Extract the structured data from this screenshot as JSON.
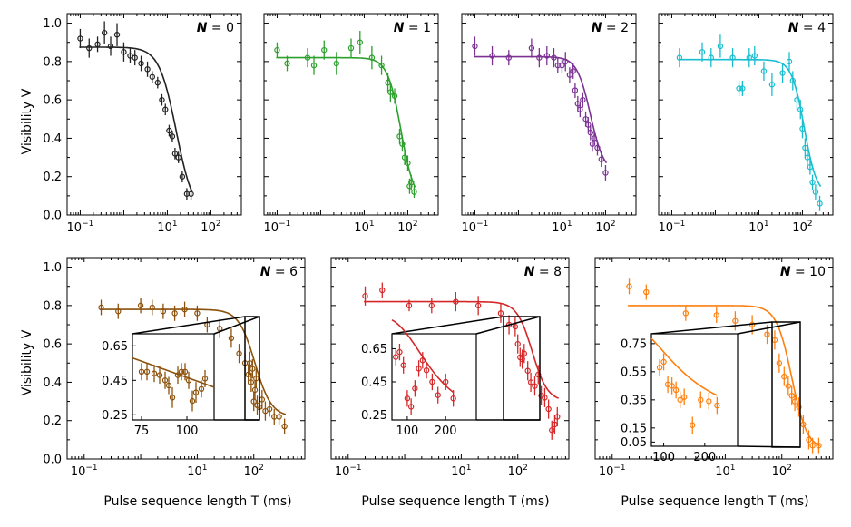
{
  "figure": {
    "ylabel_top": "Visibility V",
    "ylabel_bottom": "Visibility V",
    "xlabel": "Pulse sequence length T (ms)"
  },
  "chart_data": [
    {
      "type": "scatter",
      "label_n": "0",
      "color": "#222222",
      "x_scale": "log",
      "xlim": [
        0.05,
        500
      ],
      "ylim": [
        0,
        1.05
      ],
      "xticks": [
        "10^-1",
        "10^1",
        "10^2"
      ],
      "yticks": [
        "0.0",
        "0.2",
        "0.4",
        "0.6",
        "0.8",
        "1.0"
      ],
      "fit": {
        "v0": 0.875,
        "v1": 0.0,
        "tc": 16,
        "n": 2.2
      },
      "x": [
        0.1,
        0.16,
        0.25,
        0.36,
        0.5,
        0.7,
        1.0,
        1.4,
        1.8,
        2.5,
        3.5,
        4.5,
        6,
        7.5,
        9,
        11,
        13,
        15,
        18,
        22,
        28,
        35
      ],
      "y": [
        0.92,
        0.87,
        0.89,
        0.95,
        0.88,
        0.94,
        0.85,
        0.83,
        0.82,
        0.79,
        0.76,
        0.72,
        0.69,
        0.6,
        0.55,
        0.44,
        0.41,
        0.32,
        0.3,
        0.2,
        0.11,
        0.11
      ],
      "err": [
        0.05,
        0.05,
        0.04,
        0.06,
        0.05,
        0.06,
        0.05,
        0.04,
        0.04,
        0.04,
        0.04,
        0.03,
        0.03,
        0.03,
        0.03,
        0.03,
        0.03,
        0.03,
        0.03,
        0.03,
        0.03,
        0.03
      ]
    },
    {
      "type": "scatter",
      "label_n": "1",
      "color": "#2ca02c",
      "x_scale": "log",
      "xlim": [
        0.05,
        500
      ],
      "ylim": [
        0,
        1.05
      ],
      "xticks": [
        "10^-1",
        "10^1",
        "10^2"
      ],
      "yticks": [],
      "fit": {
        "v0": 0.82,
        "v1": 0.06,
        "tc": 70,
        "n": 2.8
      },
      "x": [
        0.1,
        0.17,
        0.5,
        0.7,
        1.2,
        2.3,
        5,
        8,
        15,
        25,
        35,
        40,
        50,
        65,
        75,
        85,
        100,
        110,
        120,
        140
      ],
      "y": [
        0.86,
        0.79,
        0.82,
        0.78,
        0.86,
        0.79,
        0.87,
        0.9,
        0.82,
        0.78,
        0.69,
        0.64,
        0.62,
        0.41,
        0.37,
        0.3,
        0.27,
        0.15,
        0.17,
        0.12
      ],
      "err": [
        0.04,
        0.04,
        0.05,
        0.05,
        0.05,
        0.06,
        0.05,
        0.06,
        0.06,
        0.05,
        0.05,
        0.05,
        0.04,
        0.04,
        0.04,
        0.04,
        0.04,
        0.04,
        0.04,
        0.03
      ]
    },
    {
      "type": "scatter",
      "label_n": "2",
      "color": "#7b3294",
      "x_scale": "log",
      "xlim": [
        0.05,
        500
      ],
      "ylim": [
        0,
        1.05
      ],
      "xticks": [
        "10^-1",
        "10^1",
        "10^2"
      ],
      "yticks": [],
      "fit": {
        "v0": 0.825,
        "v1": 0.22,
        "tc": 45,
        "n": 2.8
      },
      "x": [
        0.1,
        0.25,
        0.6,
        2,
        3,
        4.5,
        6.5,
        8,
        10,
        12,
        15,
        18,
        20,
        23,
        26,
        30,
        35,
        40,
        45,
        50,
        55,
        65,
        80,
        100
      ],
      "y": [
        0.88,
        0.83,
        0.82,
        0.87,
        0.82,
        0.83,
        0.82,
        0.78,
        0.78,
        0.8,
        0.73,
        0.75,
        0.65,
        0.58,
        0.55,
        0.6,
        0.5,
        0.47,
        0.43,
        0.37,
        0.4,
        0.35,
        0.29,
        0.22
      ],
      "err": [
        0.05,
        0.05,
        0.04,
        0.05,
        0.05,
        0.05,
        0.05,
        0.04,
        0.04,
        0.05,
        0.04,
        0.04,
        0.04,
        0.04,
        0.04,
        0.04,
        0.04,
        0.04,
        0.04,
        0.04,
        0.04,
        0.04,
        0.04,
        0.04
      ]
    },
    {
      "type": "scatter",
      "label_n": "4",
      "color": "#17becf",
      "x_scale": "log",
      "xlim": [
        0.05,
        500
      ],
      "ylim": [
        0,
        1.05
      ],
      "xticks": [
        "10^-1",
        "10^1",
        "10^2"
      ],
      "yticks": [],
      "fit": {
        "v0": 0.81,
        "v1": 0.1,
        "tc": 110,
        "n": 3.0
      },
      "x": [
        0.15,
        0.5,
        0.8,
        1.3,
        2.5,
        3.5,
        4.2,
        6,
        8,
        13,
        20,
        35,
        50,
        60,
        75,
        90,
        100,
        115,
        130,
        150,
        170,
        200,
        250
      ],
      "y": [
        0.82,
        0.85,
        0.82,
        0.88,
        0.82,
        0.66,
        0.66,
        0.82,
        0.83,
        0.75,
        0.68,
        0.74,
        0.8,
        0.7,
        0.6,
        0.55,
        0.45,
        0.35,
        0.3,
        0.25,
        0.17,
        0.12,
        0.06
      ],
      "err": [
        0.05,
        0.05,
        0.05,
        0.06,
        0.05,
        0.04,
        0.04,
        0.05,
        0.05,
        0.05,
        0.06,
        0.05,
        0.05,
        0.05,
        0.05,
        0.05,
        0.05,
        0.05,
        0.04,
        0.04,
        0.04,
        0.04,
        0.04
      ]
    },
    {
      "type": "scatter",
      "label_n": "6",
      "color": "#8c510a",
      "x_scale": "log",
      "xlim": [
        0.05,
        800
      ],
      "ylim": [
        0,
        1.05
      ],
      "xticks": [
        "10^-1",
        "10^1",
        "10^2"
      ],
      "yticks": [
        "0.0",
        "0.2",
        "0.4",
        "0.6",
        "0.8",
        "1.0"
      ],
      "fit": {
        "v0": 0.78,
        "v1": 0.22,
        "tc": 105,
        "n": 3.0
      },
      "x": [
        0.2,
        0.4,
        1,
        1.6,
        2.5,
        4,
        6,
        10,
        15,
        25,
        40,
        55,
        70,
        80,
        85,
        90,
        95,
        100,
        105,
        110,
        115,
        125,
        140,
        160,
        190,
        230,
        280,
        350
      ],
      "y": [
        0.79,
        0.77,
        0.8,
        0.79,
        0.77,
        0.76,
        0.78,
        0.76,
        0.7,
        0.68,
        0.63,
        0.55,
        0.5,
        0.44,
        0.5,
        0.4,
        0.47,
        0.3,
        0.36,
        0.42,
        0.28,
        0.27,
        0.31,
        0.25,
        0.26,
        0.22,
        0.22,
        0.17
      ],
      "err": [
        0.04,
        0.04,
        0.04,
        0.04,
        0.04,
        0.04,
        0.04,
        0.04,
        0.04,
        0.05,
        0.05,
        0.05,
        0.05,
        0.05,
        0.06,
        0.05,
        0.05,
        0.05,
        0.05,
        0.05,
        0.05,
        0.05,
        0.05,
        0.05,
        0.04,
        0.04,
        0.04,
        0.04
      ],
      "inset": {
        "xlim": [
          70,
          115
        ],
        "ylim": [
          0.22,
          0.72
        ],
        "xticks": [
          "75",
          "100"
        ],
        "yticks": [
          "0.65",
          "0.45",
          "0.25"
        ],
        "x": [
          75,
          78,
          82,
          85,
          88,
          90,
          92,
          95,
          97,
          99,
          101,
          103,
          105,
          108,
          110
        ],
        "y": [
          0.5,
          0.5,
          0.49,
          0.48,
          0.45,
          0.42,
          0.35,
          0.48,
          0.5,
          0.5,
          0.45,
          0.33,
          0.38,
          0.4,
          0.46
        ],
        "err": [
          0.05,
          0.05,
          0.05,
          0.05,
          0.05,
          0.05,
          0.06,
          0.05,
          0.05,
          0.05,
          0.05,
          0.06,
          0.06,
          0.05,
          0.05
        ],
        "fit_line": {
          "x": [
            70,
            115
          ],
          "y": [
            0.58,
            0.41
          ]
        }
      }
    },
    {
      "type": "scatter",
      "label_n": "8",
      "color": "#d62728",
      "x_scale": "log",
      "xlim": [
        0.05,
        800
      ],
      "ylim": [
        0,
        1.05
      ],
      "xticks": [
        "10^-1",
        "10^1",
        "10^2"
      ],
      "yticks": [],
      "fit": {
        "v0": 0.82,
        "v1": 0.3,
        "tc": 180,
        "n": 3.2
      },
      "x": [
        0.2,
        0.4,
        1.2,
        3,
        8,
        20,
        50,
        70,
        90,
        100,
        110,
        120,
        130,
        150,
        170,
        200,
        230,
        260,
        300,
        350,
        400,
        450,
        500
      ],
      "y": [
        0.85,
        0.88,
        0.8,
        0.8,
        0.82,
        0.8,
        0.76,
        0.7,
        0.69,
        0.6,
        0.53,
        0.52,
        0.55,
        0.46,
        0.4,
        0.38,
        0.44,
        0.33,
        0.32,
        0.26,
        0.15,
        0.18,
        0.22
      ],
      "err": [
        0.05,
        0.04,
        0.03,
        0.04,
        0.05,
        0.05,
        0.05,
        0.05,
        0.05,
        0.05,
        0.05,
        0.05,
        0.05,
        0.05,
        0.05,
        0.05,
        0.05,
        0.05,
        0.05,
        0.05,
        0.05,
        0.05,
        0.05
      ],
      "inset": {
        "xlim": [
          60,
          280
        ],
        "ylim": [
          0.22,
          0.74
        ],
        "xticks": [
          "100",
          "200"
        ],
        "yticks": [
          "0.65",
          "0.45",
          "0.25"
        ],
        "x": [
          70,
          80,
          90,
          100,
          110,
          120,
          130,
          140,
          150,
          165,
          180,
          200,
          220
        ],
        "y": [
          0.6,
          0.63,
          0.55,
          0.35,
          0.3,
          0.41,
          0.53,
          0.58,
          0.52,
          0.45,
          0.37,
          0.45,
          0.35
        ],
        "err": [
          0.05,
          0.05,
          0.05,
          0.05,
          0.05,
          0.05,
          0.05,
          0.05,
          0.05,
          0.05,
          0.05,
          0.05,
          0.05
        ],
        "fit": {
          "v0": 0.85,
          "v1": 0.22,
          "tc": 160,
          "n": 3.2
        }
      }
    },
    {
      "type": "scatter",
      "label_n": "10",
      "color": "#ff7f0e",
      "x_scale": "log",
      "xlim": [
        0.05,
        800
      ],
      "ylim": [
        0,
        1.05
      ],
      "xticks": [
        "10^-1",
        "10^1",
        "10^2"
      ],
      "yticks": [],
      "fit": {
        "v0": 0.8,
        "v1": 0.05,
        "tc": 150,
        "n": 3.2
      },
      "x": [
        0.2,
        0.4,
        2,
        7,
        15,
        30,
        55,
        75,
        90,
        110,
        130,
        150,
        170,
        200,
        240,
        300,
        350,
        450
      ],
      "y": [
        0.9,
        0.87,
        0.76,
        0.75,
        0.72,
        0.7,
        0.65,
        0.62,
        0.5,
        0.43,
        0.38,
        0.33,
        0.3,
        0.27,
        0.18,
        0.1,
        0.07,
        0.07
      ],
      "err": [
        0.04,
        0.04,
        0.04,
        0.04,
        0.05,
        0.05,
        0.05,
        0.05,
        0.05,
        0.05,
        0.05,
        0.05,
        0.05,
        0.05,
        0.05,
        0.05,
        0.04,
        0.04
      ],
      "inset": {
        "xlim": [
          70,
          280
        ],
        "ylim": [
          0.02,
          0.82
        ],
        "xticks": [
          "100",
          "200"
        ],
        "yticks": [
          "0.75",
          "0.55",
          "0.35",
          "0.15",
          "0.05"
        ],
        "ytick_vals": [
          0.75,
          0.55,
          0.35,
          0.15,
          0.05
        ],
        "x": [
          90,
          100,
          110,
          120,
          130,
          140,
          150,
          170,
          190,
          210,
          230
        ],
        "y": [
          0.58,
          0.62,
          0.46,
          0.45,
          0.42,
          0.35,
          0.37,
          0.17,
          0.35,
          0.34,
          0.31
        ],
        "err": [
          0.06,
          0.06,
          0.06,
          0.06,
          0.06,
          0.06,
          0.06,
          0.06,
          0.06,
          0.06,
          0.06
        ],
        "fit": {
          "v0": 0.9,
          "v1": 0.18,
          "tc": 150,
          "n": 2.2
        }
      }
    }
  ]
}
